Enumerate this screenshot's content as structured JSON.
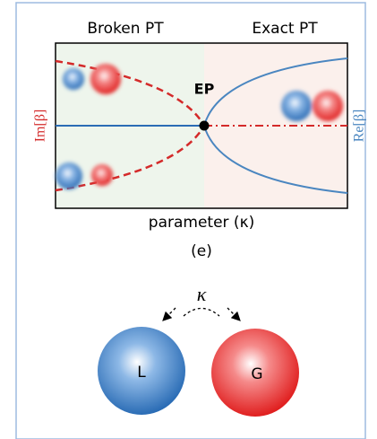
{
  "panel": {
    "left_region": "Broken PT",
    "right_region": "Exact PT",
    "point": "EP",
    "left_axis": "Im[β]",
    "right_axis": "Re[β]",
    "x_axis": "parameter (κ)",
    "caption": "(e)"
  },
  "diagram": {
    "coupling": "κ",
    "nodes": [
      {
        "label": "L"
      },
      {
        "label": "G"
      }
    ]
  }
}
